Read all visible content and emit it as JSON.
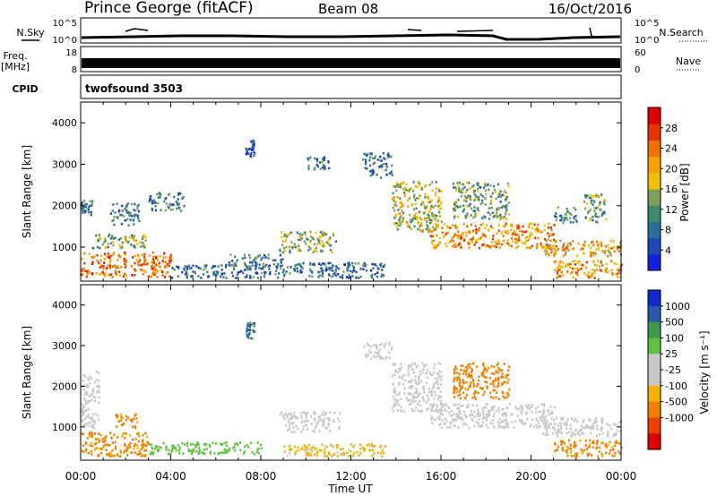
{
  "header": {
    "station": "Prince George (fitACF)",
    "beam": "Beam 08",
    "date": "16/Oct/2016"
  },
  "top_panels": {
    "nsky_label": "N.Sky",
    "nsearch_label": "N.Search",
    "nsky_ticks": [
      "10^5",
      "10^0"
    ],
    "nsearch_ticks": [
      "10^5",
      "10^0"
    ],
    "freq_label": "Freq.",
    "freq_unit": "[MHz]",
    "freq_ticks": [
      "18",
      "8"
    ],
    "nave_label": "Nave",
    "nave_ticks": [
      "60",
      "0"
    ],
    "cpid_label": "CPID",
    "cpid_value": "twofsound 3503"
  },
  "colors": {
    "power_scale": [
      "#1020e0",
      "#1f48b8",
      "#2b6e9a",
      "#3f8a6a",
      "#7aa05a",
      "#f0c000",
      "#f5a000",
      "#f07000",
      "#e83000",
      "#e00000"
    ],
    "velocity_scale": [
      "#e00000",
      "#ee4000",
      "#f28000",
      "#f7b000",
      "#c8c8c8",
      "#c8c8c8",
      "#60c040",
      "#3a9a50",
      "#2a5ab0",
      "#1028d0"
    ]
  },
  "chart_data": [
    {
      "type": "heatmap",
      "title": "",
      "xlabel": "Time UT",
      "ylabel": "Slant Range [km]",
      "x_tick_labels": [
        "00:00",
        "04:00",
        "08:00",
        "12:00",
        "16:00",
        "20:00",
        "00:00"
      ],
      "xlim": [
        "00:00",
        "24:00"
      ],
      "ylim": [
        180,
        4500
      ],
      "y_ticks": [
        1000,
        2000,
        3000,
        4000
      ],
      "colorbar": {
        "label": "Power [dB]",
        "range": [
          0,
          32
        ],
        "ticks": [
          "4",
          "8",
          "12",
          "16",
          "20",
          "24",
          "28"
        ]
      },
      "regions": [
        {
          "t": [
            0.0,
            4.0
          ],
          "r": [
            300,
            900
          ],
          "value": 24,
          "desc": "near-range high power"
        },
        {
          "t": [
            0.5,
            3.0
          ],
          "r": [
            1000,
            1350
          ],
          "value": 14
        },
        {
          "t": [
            0.0,
            0.5
          ],
          "r": [
            1800,
            2150
          ],
          "value": 10
        },
        {
          "t": [
            1.3,
            2.6
          ],
          "r": [
            1550,
            2100
          ],
          "value": 10
        },
        {
          "t": [
            3.0,
            4.6
          ],
          "r": [
            1900,
            2350
          ],
          "value": 10
        },
        {
          "t": [
            4.0,
            9.0
          ],
          "r": [
            280,
            600
          ],
          "value": 8
        },
        {
          "t": [
            6.5,
            9.0
          ],
          "r": [
            550,
            850
          ],
          "value": 10
        },
        {
          "t": [
            7.3,
            7.7
          ],
          "r": [
            3200,
            3600
          ],
          "value": 6
        },
        {
          "t": [
            8.8,
            11.3
          ],
          "r": [
            900,
            1400
          ],
          "value": 14
        },
        {
          "t": [
            10.0,
            11.0
          ],
          "r": [
            2900,
            3200
          ],
          "value": 8
        },
        {
          "t": [
            12.5,
            13.8
          ],
          "r": [
            2700,
            3300
          ],
          "value": 8
        },
        {
          "t": [
            9.0,
            13.5
          ],
          "r": [
            280,
            650
          ],
          "value": 8
        },
        {
          "t": [
            13.8,
            16.0
          ],
          "r": [
            1400,
            2600
          ],
          "value": 16,
          "desc": "descending echo band"
        },
        {
          "t": [
            15.5,
            21.0
          ],
          "r": [
            1000,
            1600
          ],
          "value": 22
        },
        {
          "t": [
            16.5,
            19.0
          ],
          "r": [
            1700,
            2600
          ],
          "value": 12
        },
        {
          "t": [
            20.5,
            24.0
          ],
          "r": [
            800,
            1200
          ],
          "value": 20
        },
        {
          "t": [
            21.0,
            24.0
          ],
          "r": [
            280,
            700
          ],
          "value": 22
        },
        {
          "t": [
            21.0,
            22.0
          ],
          "r": [
            1600,
            2000
          ],
          "value": 10
        },
        {
          "t": [
            22.3,
            23.3
          ],
          "r": [
            1600,
            2300
          ],
          "value": 12
        }
      ]
    },
    {
      "type": "heatmap",
      "title": "",
      "xlabel": "Time UT",
      "ylabel": "Slant Range [km]",
      "x_tick_labels": [
        "00:00",
        "04:00",
        "08:00",
        "12:00",
        "16:00",
        "20:00",
        "00:00"
      ],
      "xlim": [
        "00:00",
        "24:00"
      ],
      "ylim": [
        180,
        4500
      ],
      "y_ticks": [
        1000,
        2000,
        3000,
        4000
      ],
      "colorbar": {
        "label": "Velocity [m s⁻¹]",
        "ticks": [
          "1000",
          "500",
          "100",
          "25",
          "-25",
          "-100",
          "-500",
          "-1000"
        ]
      },
      "regions": [
        {
          "t": [
            0.0,
            3.0
          ],
          "r": [
            300,
            900
          ],
          "value": -150,
          "desc": "orange near-range"
        },
        {
          "t": [
            1.5,
            2.5
          ],
          "r": [
            1000,
            1350
          ],
          "value": -150
        },
        {
          "t": [
            0.0,
            0.8
          ],
          "r": [
            1000,
            2400
          ],
          "value": 0
        },
        {
          "t": [
            3.0,
            8.0
          ],
          "r": [
            350,
            650
          ],
          "value": 60
        },
        {
          "t": [
            7.3,
            7.7
          ],
          "r": [
            3200,
            3600
          ],
          "value": 600
        },
        {
          "t": [
            8.8,
            11.5
          ],
          "r": [
            900,
            1400
          ],
          "value": 0
        },
        {
          "t": [
            9.0,
            13.5
          ],
          "r": [
            300,
            600
          ],
          "value": -40
        },
        {
          "t": [
            12.5,
            13.8
          ],
          "r": [
            2700,
            3100
          ],
          "value": 0
        },
        {
          "t": [
            13.8,
            16.0
          ],
          "r": [
            1400,
            2600
          ],
          "value": 0
        },
        {
          "t": [
            16.5,
            19.0
          ],
          "r": [
            1700,
            2600
          ],
          "value": -300
        },
        {
          "t": [
            15.5,
            21.0
          ],
          "r": [
            1000,
            1600
          ],
          "value": 0
        },
        {
          "t": [
            20.5,
            24.0
          ],
          "r": [
            800,
            1250
          ],
          "value": 0
        },
        {
          "t": [
            21.0,
            24.0
          ],
          "r": [
            300,
            700
          ],
          "value": -150
        }
      ]
    }
  ]
}
